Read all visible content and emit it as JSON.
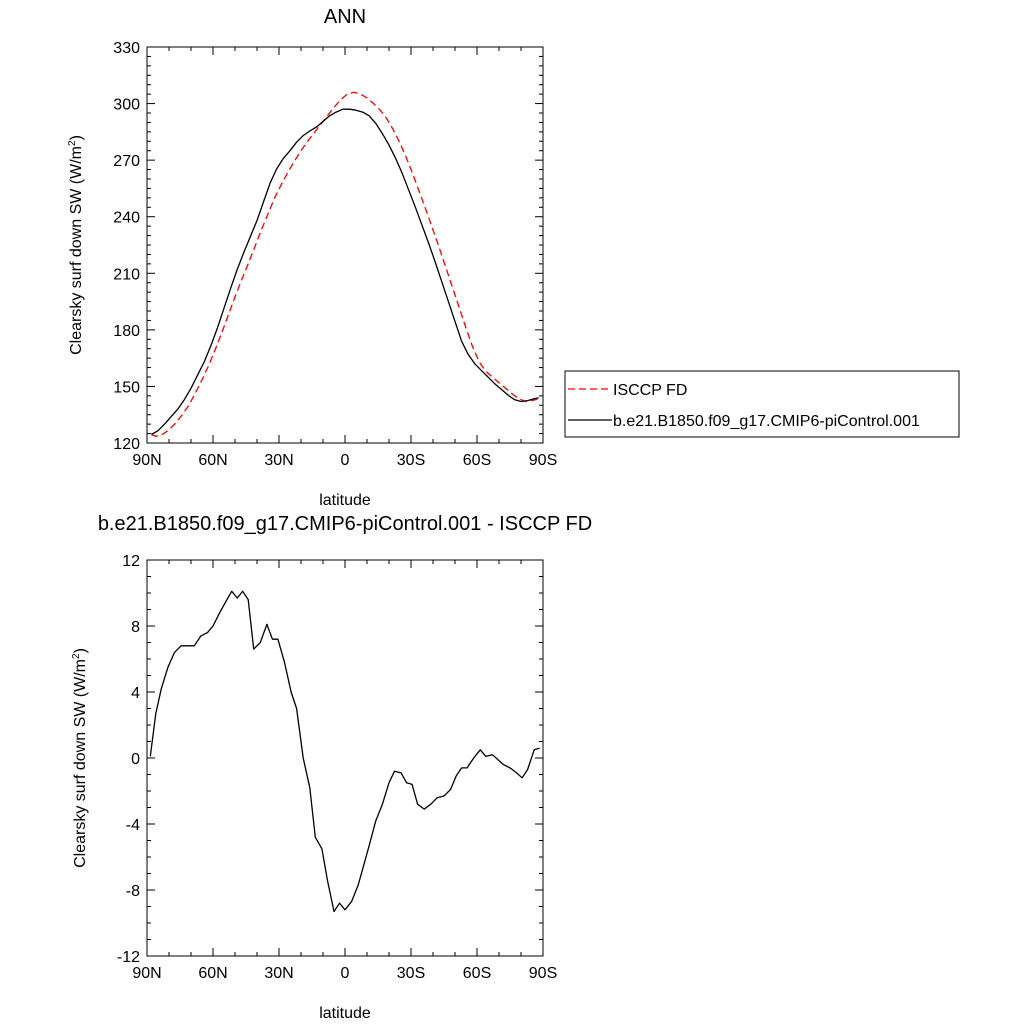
{
  "chart_data": [
    {
      "type": "line",
      "title": "ANN",
      "xlabel": "latitude",
      "ylabel": "Clearsky surf down SW (W/m",
      "ylabel_sup": "2",
      "ylabel_close": ")",
      "xlim": [
        -90,
        90
      ],
      "ylim": [
        120,
        330
      ],
      "xticks": [
        -90,
        -60,
        -30,
        0,
        30,
        60,
        90
      ],
      "xtick_labels": [
        "90N",
        "60N",
        "30N",
        "0",
        "30S",
        "60S",
        "90S"
      ],
      "yticks": [
        120,
        150,
        180,
        210,
        240,
        270,
        300,
        330
      ],
      "ytick_labels": [
        "120",
        "150",
        "180",
        "210",
        "240",
        "270",
        "300",
        "330"
      ],
      "grid": false,
      "legend_position": "outside-right",
      "series": [
        {
          "name": "ISCCP FD",
          "color": "#ff0000",
          "dash": "dashed",
          "x": [
            -88,
            -86,
            -83,
            -80,
            -77,
            -74,
            -71,
            -68,
            -65,
            -62,
            -59,
            -56,
            -53,
            -50,
            -47,
            -44,
            -41,
            -38,
            -35,
            -32,
            -29,
            -26,
            -23,
            -20,
            -17,
            -14,
            -11,
            -8,
            -5,
            -2,
            1,
            4,
            7,
            10,
            13,
            16,
            19,
            22,
            25,
            28,
            31,
            34,
            37,
            40,
            43,
            46,
            49,
            52,
            55,
            58,
            61,
            64,
            67,
            70,
            73,
            76,
            79,
            82,
            85,
            88
          ],
          "y": [
            124.5,
            123.5,
            124.5,
            127,
            130.5,
            135,
            140,
            146.5,
            153.5,
            161,
            169.5,
            178.5,
            188,
            197.5,
            206.5,
            215,
            224,
            233,
            241.5,
            250,
            257,
            263.5,
            269.5,
            275,
            280,
            284.5,
            289,
            293.5,
            298,
            302,
            305,
            306,
            305,
            303,
            300,
            296.5,
            292,
            286,
            279,
            271,
            262,
            252.5,
            243,
            233,
            223,
            212.5,
            202,
            191.5,
            181,
            171,
            163,
            158,
            155,
            152,
            149,
            146,
            143.5,
            142,
            142.5,
            143.5
          ]
        },
        {
          "name": "b.e21.B1850.f09_g17.CMIP6-piControl.001",
          "color": "#000000",
          "dash": "solid",
          "x": [
            -88,
            -85,
            -82,
            -79,
            -76,
            -73,
            -70,
            -67,
            -64,
            -61,
            -58,
            -55,
            -52,
            -49,
            -46,
            -43,
            -40,
            -37,
            -34,
            -31,
            -28,
            -25,
            -22,
            -19,
            -16,
            -13,
            -10,
            -7,
            -4,
            -1,
            2,
            5,
            8,
            11,
            14,
            17,
            20,
            23,
            26,
            29,
            32,
            35,
            38,
            41,
            44,
            47,
            50,
            53,
            56,
            59,
            62,
            65,
            68,
            71,
            74,
            77,
            80,
            83,
            86,
            88
          ],
          "y": [
            124.5,
            126.5,
            130,
            134,
            138,
            143,
            149,
            156,
            163,
            171.5,
            181,
            191.5,
            202,
            212,
            221,
            229.5,
            238,
            248,
            258,
            265.5,
            271,
            275,
            279.5,
            283,
            285.5,
            287.5,
            290.5,
            293.5,
            295.5,
            297,
            297,
            296.5,
            295.5,
            293.5,
            289.5,
            284,
            278,
            271,
            263,
            254,
            245,
            235.5,
            226,
            216,
            205.5,
            195,
            184.5,
            174,
            167,
            162,
            158.5,
            155,
            151.5,
            148.5,
            145.5,
            143,
            142,
            142.5,
            143.5,
            144
          ]
        }
      ]
    },
    {
      "type": "line",
      "title": "b.e21.B1850.f09_g17.CMIP6-piControl.001 - ISCCP FD",
      "xlabel": "latitude",
      "ylabel": "Clearsky surf down SW (W/m",
      "ylabel_sup": "2",
      "ylabel_close": ")",
      "xlim": [
        -90,
        90
      ],
      "ylim": [
        -12,
        12
      ],
      "xticks": [
        -90,
        -60,
        -30,
        0,
        30,
        60,
        90
      ],
      "xtick_labels": [
        "90N",
        "60N",
        "30N",
        "0",
        "30S",
        "60S",
        "90S"
      ],
      "yticks": [
        -12,
        -8,
        -4,
        0,
        4,
        8,
        12
      ],
      "ytick_labels": [
        "-12",
        "-8",
        "-4",
        "0",
        "4",
        "8",
        "12"
      ],
      "grid": false,
      "series": [
        {
          "color": "#000000",
          "dash": "solid",
          "x": [
            -88.5,
            -86,
            -83.5,
            -80.5,
            -77.5,
            -74.5,
            -71.5,
            -68.5,
            -65.5,
            -62.5,
            -60,
            -57,
            -54.5,
            -51.5,
            -49,
            -46.5,
            -44,
            -41.5,
            -38.5,
            -35.5,
            -33,
            -30.5,
            -27.5,
            -24.5,
            -22,
            -19,
            -16,
            -13.5,
            -10.5,
            -8,
            -5,
            -2.5,
            0,
            3,
            6,
            8.5,
            11,
            14,
            17,
            20,
            22.5,
            25.5,
            28,
            30.5,
            33,
            36,
            39,
            42,
            45,
            48,
            50.5,
            53,
            55.5,
            58.5,
            61.5,
            64,
            67,
            69.5,
            72,
            75,
            78,
            80.5,
            83,
            86,
            88.5
          ],
          "y": [
            0.1,
            2.7,
            4.2,
            5.5,
            6.4,
            6.8,
            6.8,
            6.8,
            7.4,
            7.6,
            8.0,
            8.8,
            9.4,
            10.1,
            9.7,
            10.1,
            9.6,
            6.6,
            7.0,
            8.1,
            7.2,
            7.2,
            5.8,
            4.0,
            3.0,
            0.0,
            -1.8,
            -4.8,
            -5.5,
            -7.4,
            -9.3,
            -8.8,
            -9.2,
            -8.7,
            -7.7,
            -6.5,
            -5.3,
            -3.8,
            -2.8,
            -1.5,
            -0.8,
            -0.9,
            -1.5,
            -1.6,
            -2.8,
            -3.1,
            -2.8,
            -2.4,
            -2.3,
            -1.9,
            -1.1,
            -0.6,
            -0.6,
            0.0,
            0.5,
            0.1,
            0.2,
            -0.1,
            -0.4,
            -0.6,
            -0.9,
            -1.2,
            -0.7,
            0.5,
            0.6
          ]
        }
      ]
    }
  ]
}
